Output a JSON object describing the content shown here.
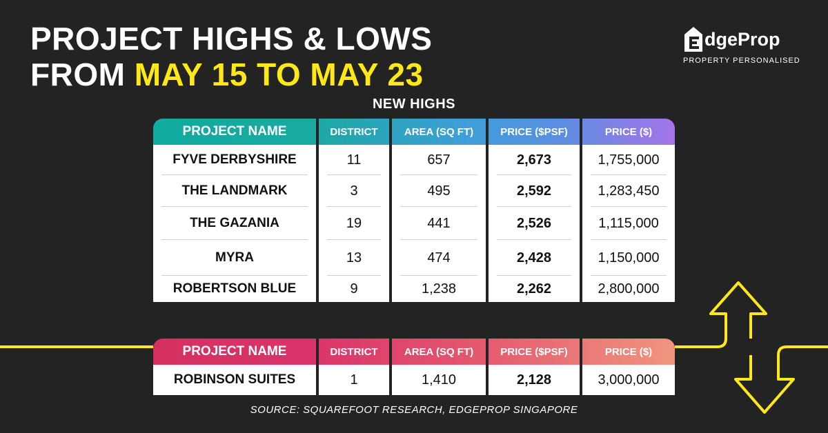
{
  "header": {
    "title_line1": "PROJECT HIGHS & LOWS",
    "title_line2_prefix": "FROM ",
    "title_line2_highlight": "MAY 15 TO MAY 23"
  },
  "logo": {
    "mark": "E",
    "name": "dgeProp",
    "tagline": "PROPERTY PERSONALISED"
  },
  "highs": {
    "section_title": "NEW HIGHS",
    "columns": [
      "PROJECT NAME",
      "DISTRICT",
      "AREA (SQ FT)",
      "PRICE ($PSF)",
      "PRICE ($)"
    ],
    "rows": [
      [
        "FYVE DERBYSHIRE",
        "11",
        "657",
        "2,673",
        "1,755,000"
      ],
      [
        "THE LANDMARK",
        "3",
        "495",
        "2,592",
        "1,283,450"
      ],
      [
        "THE GAZANIA",
        "19",
        "441",
        "2,526",
        "1,115,000"
      ],
      [
        "MYRA",
        "13",
        "474",
        "2,428",
        "1,150,000"
      ],
      [
        "ROBERTSON BLUE",
        "9",
        "1,238",
        "2,262",
        "2,800,000"
      ]
    ]
  },
  "lows": {
    "columns": [
      "PROJECT NAME",
      "DISTRICT",
      "AREA (SQ FT)",
      "PRICE ($PSF)",
      "PRICE ($)"
    ],
    "rows": [
      [
        "ROBINSON SUITES",
        "1",
        "1,410",
        "2,128",
        "3,000,000"
      ]
    ]
  },
  "source": "SOURCE: SQUAREFOOT RESEARCH, EDGEPROP SINGAPORE",
  "colors": {
    "background": "#232323",
    "highlight": "#ffe817",
    "highs_header_gradient": [
      "#1aa9a0",
      "#3c9fd9",
      "#9a78e6"
    ],
    "lows_header_gradient": [
      "#d9346a",
      "#ec8a7c"
    ]
  }
}
